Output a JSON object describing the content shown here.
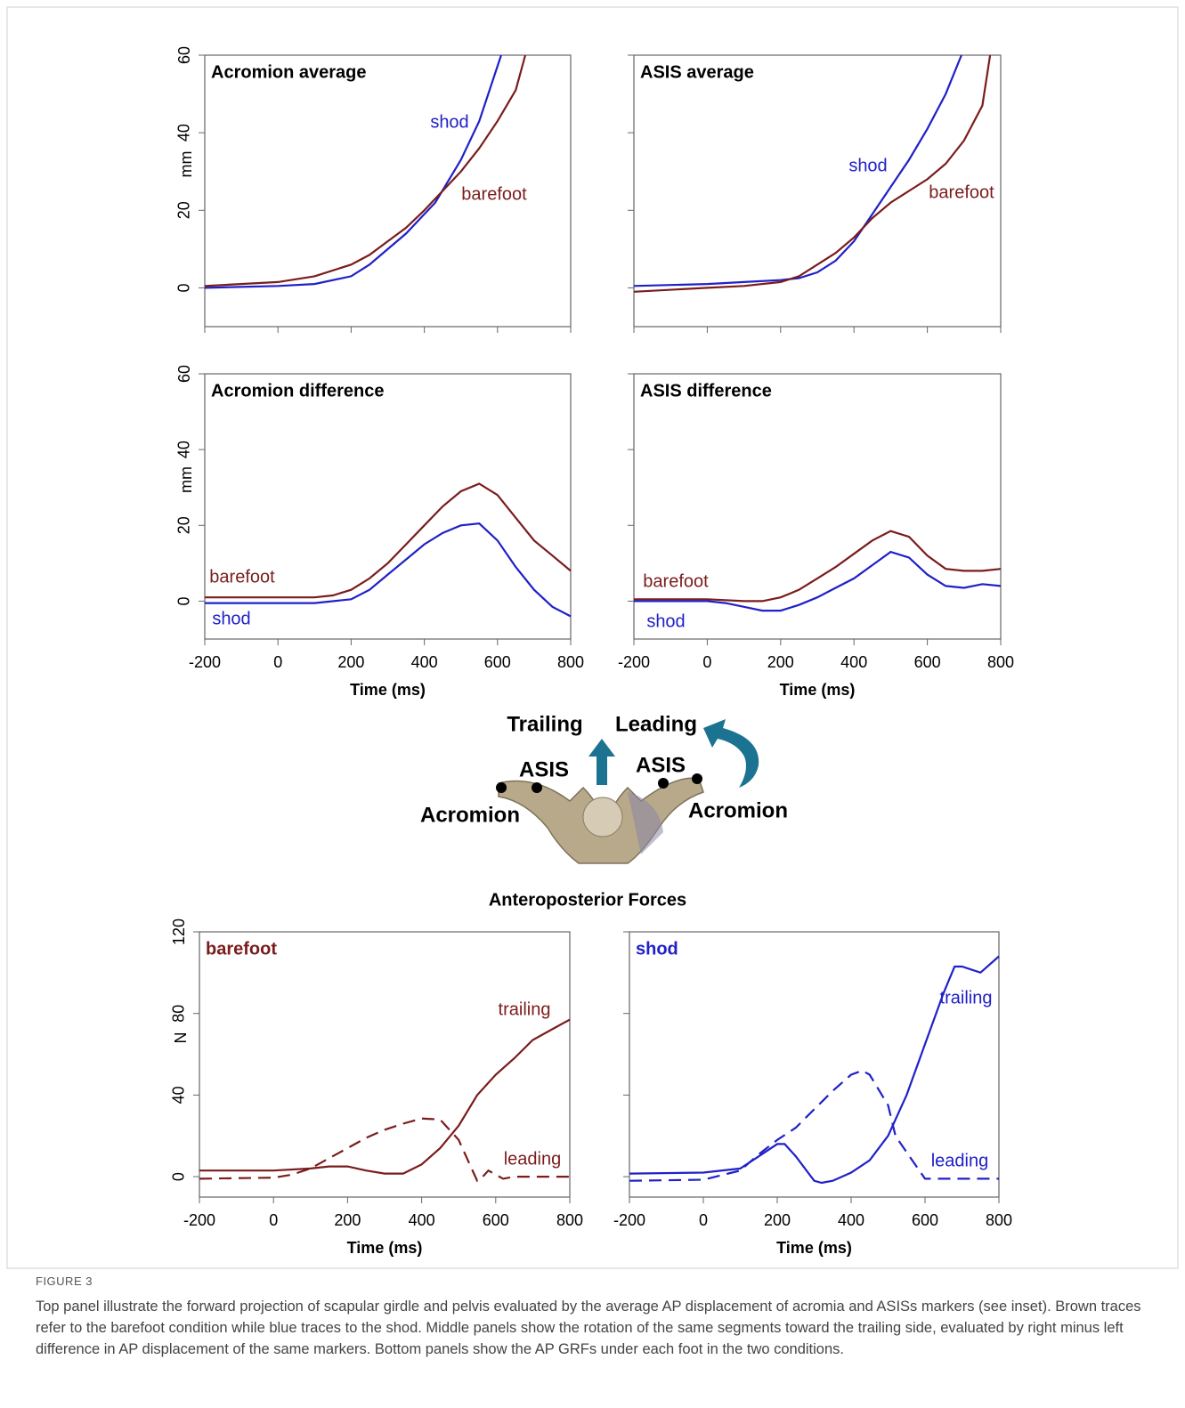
{
  "chart_data": [
    {
      "type": "line",
      "title": "Acromion average",
      "ylabel": "mm",
      "xlim": [
        -200,
        800
      ],
      "ylim": [
        -10,
        60
      ],
      "xticks": [
        -200,
        0,
        200,
        400,
        600,
        800
      ],
      "yticks": [
        0,
        20,
        40,
        60
      ],
      "xtick_labels": false,
      "ytick_labels": true,
      "series": [
        {
          "name": "shod",
          "color": "#2020c8",
          "dash": false,
          "x": [
            -200,
            0,
            100,
            200,
            250,
            300,
            350,
            400,
            430,
            500,
            550,
            610
          ],
          "values": [
            0,
            0.5,
            1,
            3,
            6,
            10,
            14,
            19,
            22,
            33,
            43,
            60
          ]
        },
        {
          "name": "barefoot",
          "color": "#7a1c1c",
          "dash": false,
          "x": [
            -200,
            0,
            100,
            200,
            250,
            300,
            350,
            400,
            450,
            500,
            550,
            600,
            650,
            676
          ],
          "values": [
            0.5,
            1.5,
            3,
            6,
            8.5,
            12,
            15.5,
            20,
            25,
            30,
            36,
            43,
            51,
            60
          ]
        }
      ]
    },
    {
      "type": "line",
      "title": "ASIS average",
      "xlim": [
        -200,
        800
      ],
      "ylim": [
        -10,
        60
      ],
      "xticks": [
        -200,
        0,
        200,
        400,
        600,
        800
      ],
      "yticks": [
        0,
        20,
        40,
        60
      ],
      "xtick_labels": false,
      "ytick_labels": false,
      "series": [
        {
          "name": "shod",
          "color": "#2020c8",
          "dash": false,
          "x": [
            -200,
            0,
            100,
            200,
            250,
            300,
            350,
            400,
            450,
            500,
            550,
            600,
            650,
            693
          ],
          "values": [
            0.5,
            1,
            1.5,
            2,
            2.5,
            4,
            7,
            12,
            19,
            26,
            33,
            41,
            50,
            60
          ]
        },
        {
          "name": "barefoot",
          "color": "#7a1c1c",
          "dash": false,
          "x": [
            -200,
            0,
            100,
            200,
            250,
            300,
            350,
            400,
            450,
            500,
            550,
            600,
            650,
            700,
            750,
            771
          ],
          "values": [
            -1,
            0,
            0.5,
            1.5,
            3,
            6,
            9,
            13,
            18,
            22,
            25,
            28,
            32,
            38,
            47,
            60
          ]
        }
      ]
    },
    {
      "type": "line",
      "title": "Acromion difference",
      "ylabel": "mm",
      "xlabel": "Time (ms)",
      "xlim": [
        -200,
        800
      ],
      "ylim": [
        -10,
        60
      ],
      "xticks": [
        -200,
        0,
        200,
        400,
        600,
        800
      ],
      "yticks": [
        0,
        20,
        40,
        60
      ],
      "xtick_labels": true,
      "ytick_labels": true,
      "series": [
        {
          "name": "barefoot",
          "color": "#7a1c1c",
          "dash": false,
          "x": [
            -200,
            0,
            100,
            150,
            200,
            250,
            300,
            350,
            400,
            450,
            500,
            550,
            600,
            650,
            700,
            750,
            800
          ],
          "values": [
            1,
            1,
            1,
            1.5,
            3,
            6,
            10,
            15,
            20,
            25,
            29,
            31,
            28,
            22,
            16,
            12,
            8
          ]
        },
        {
          "name": "shod",
          "color": "#2020c8",
          "dash": false,
          "x": [
            -200,
            0,
            100,
            200,
            250,
            300,
            350,
            400,
            450,
            500,
            550,
            600,
            650,
            700,
            750,
            800
          ],
          "values": [
            -0.5,
            -0.5,
            -0.5,
            0.5,
            3,
            7,
            11,
            15,
            18,
            20,
            20.5,
            16,
            9,
            3,
            -1.5,
            -4
          ]
        }
      ]
    },
    {
      "type": "line",
      "title": "ASIS difference",
      "xlabel": "Time (ms)",
      "xlim": [
        -200,
        800
      ],
      "ylim": [
        -10,
        60
      ],
      "xticks": [
        -200,
        0,
        200,
        400,
        600,
        800
      ],
      "yticks": [
        0,
        20,
        40,
        60
      ],
      "xtick_labels": true,
      "ytick_labels": false,
      "series": [
        {
          "name": "barefoot",
          "color": "#7a1c1c",
          "dash": false,
          "x": [
            -200,
            0,
            100,
            150,
            200,
            250,
            300,
            350,
            400,
            450,
            500,
            550,
            600,
            650,
            700,
            750,
            800
          ],
          "values": [
            0.5,
            0.5,
            0,
            0,
            1,
            3,
            6,
            9,
            12.5,
            16,
            18.5,
            17,
            12,
            8.5,
            8,
            8,
            8.5
          ]
        },
        {
          "name": "shod",
          "color": "#2020c8",
          "dash": false,
          "x": [
            -200,
            0,
            50,
            100,
            150,
            200,
            250,
            300,
            350,
            400,
            450,
            500,
            550,
            600,
            650,
            700,
            750,
            800
          ],
          "values": [
            0,
            0,
            -0.5,
            -1.5,
            -2.5,
            -2.5,
            -1,
            1,
            3.5,
            6,
            9.5,
            13,
            11.5,
            7,
            4,
            3.5,
            4.5,
            4
          ]
        }
      ]
    },
    {
      "type": "line",
      "title": "barefoot",
      "title_color": "#7a1c1c",
      "ylabel": "N",
      "xlabel": "Time (ms)",
      "xlim": [
        -200,
        800
      ],
      "ylim": [
        -10,
        120
      ],
      "xticks": [
        -200,
        0,
        200,
        400,
        600,
        800
      ],
      "yticks": [
        0,
        40,
        80,
        120
      ],
      "xtick_labels": true,
      "ytick_labels": true,
      "series": [
        {
          "name": "trailing",
          "color": "#7a1c1c",
          "dash": false,
          "x": [
            -200,
            0,
            100,
            150,
            200,
            250,
            300,
            350,
            400,
            450,
            500,
            550,
            600,
            650,
            700,
            750,
            800
          ],
          "values": [
            3,
            3,
            4,
            5,
            5,
            3,
            1.5,
            1.5,
            6,
            14,
            25,
            40,
            50,
            58,
            67,
            72,
            77
          ]
        },
        {
          "name": "leading",
          "color": "#7a1c1c",
          "dash": true,
          "x": [
            -200,
            0,
            50,
            100,
            150,
            200,
            250,
            300,
            350,
            400,
            450,
            500,
            520,
            550,
            560,
            580,
            600,
            620,
            650,
            700,
            800
          ],
          "values": [
            -1,
            -0.5,
            1,
            4,
            9,
            14,
            19,
            23,
            26,
            28.5,
            28,
            18,
            10,
            -2,
            -1,
            3,
            1,
            -1,
            0,
            0,
            0
          ]
        }
      ]
    },
    {
      "type": "line",
      "title": "shod",
      "title_color": "#2020c8",
      "xlabel": "Time (ms)",
      "xlim": [
        -200,
        800
      ],
      "ylim": [
        -10,
        120
      ],
      "xticks": [
        -200,
        0,
        200,
        400,
        600,
        800
      ],
      "yticks": [
        0,
        40,
        80,
        120
      ],
      "xtick_labels": true,
      "ytick_labels": false,
      "series": [
        {
          "name": "trailing",
          "color": "#2020c8",
          "dash": false,
          "x": [
            -200,
            0,
            100,
            150,
            200,
            220,
            250,
            300,
            320,
            350,
            400,
            450,
            500,
            550,
            600,
            650,
            680,
            700,
            750,
            800
          ],
          "values": [
            1.5,
            2,
            4,
            10,
            16,
            16,
            10,
            -2,
            -3,
            -2,
            2,
            8,
            20,
            40,
            65,
            90,
            103,
            103,
            100,
            108
          ]
        },
        {
          "name": "leading",
          "color": "#2020c8",
          "dash": true,
          "x": [
            -200,
            0,
            100,
            150,
            200,
            250,
            300,
            350,
            400,
            430,
            450,
            500,
            520,
            550,
            600,
            620,
            700,
            800
          ],
          "values": [
            -2,
            -1.5,
            3,
            11,
            18,
            24,
            33,
            42,
            50,
            52,
            50,
            35,
            20,
            12,
            -1,
            -1,
            -1,
            -1
          ]
        }
      ]
    }
  ],
  "inset": {
    "trailing": "Trailing",
    "leading": "Leading",
    "asis_left": "ASIS",
    "asis_right": "ASIS",
    "acromion_left": "Acromion",
    "acromion_right": "Acromion"
  },
  "forces_heading": "Anteroposterior Forces",
  "caption": {
    "label": "FIGURE 3",
    "text": "Top panel illustrate the forward projection of scapular girdle and pelvis evaluated by the average AP displacement of acromia and ASISs markers (see inset). Brown traces refer to the barefoot condition while blue traces to the shod. Middle panels show the rotation of the same segments toward the trailing side, evaluated by right minus left difference in AP displacement of the same markers. Bottom panels show the AP GRFs under each foot in the two conditions."
  }
}
